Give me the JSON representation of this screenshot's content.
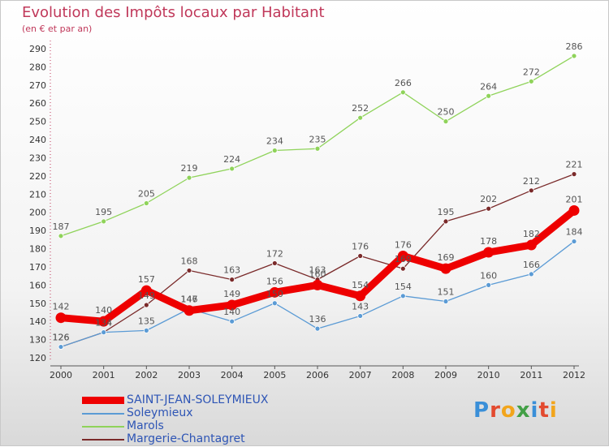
{
  "title": "Evolution des Impôts locaux par Habitant",
  "subtitle": "(en € et par an)",
  "logo": "Proxiti",
  "chart_data": {
    "type": "line",
    "x": [
      "2000",
      "2001",
      "2002",
      "2003",
      "2004",
      "2005",
      "2006",
      "2007",
      "2008",
      "2009",
      "2010",
      "2011",
      "2012"
    ],
    "ylim": [
      120,
      290
    ],
    "yticks": [
      120,
      130,
      140,
      150,
      160,
      170,
      180,
      190,
      200,
      210,
      220,
      230,
      240,
      250,
      260,
      270,
      280,
      290
    ],
    "grid": false,
    "legend": "bottom-left",
    "series": [
      {
        "name": "Marols",
        "color": "#8fd35a",
        "values": [
          187,
          195,
          205,
          219,
          224,
          234,
          235,
          252,
          266,
          250,
          264,
          272,
          286
        ]
      },
      {
        "name": "Margerie-Chantagret",
        "color": "#7a2a2a",
        "values": [
          126,
          134,
          149,
          168,
          163,
          172,
          163,
          176,
          169,
          195,
          202,
          212,
          221
        ]
      },
      {
        "name": "Soleymieux",
        "color": "#5b9bd5",
        "values": [
          126,
          134,
          135,
          147,
          140,
          150,
          136,
          143,
          154,
          151,
          160,
          166,
          184
        ]
      },
      {
        "name": "SAINT-JEAN-SOLEYMIEUX",
        "color": "#ee0000",
        "values": [
          142,
          140,
          157,
          146,
          149,
          156,
          160,
          154,
          176,
          169,
          178,
          182,
          201
        ]
      }
    ]
  }
}
